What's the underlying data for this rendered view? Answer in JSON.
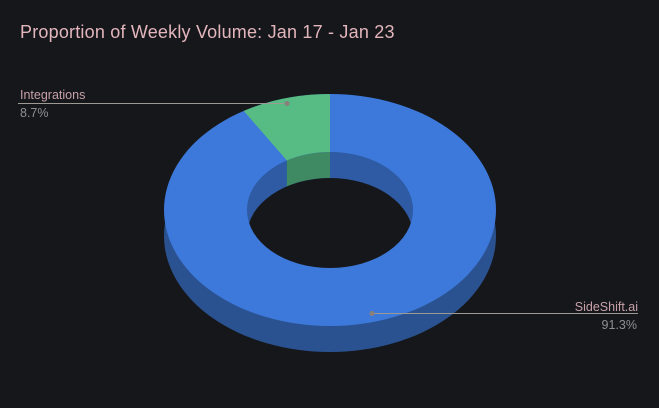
{
  "title": "Proportion of Weekly Volume: Jan 17 - Jan 23",
  "callouts": {
    "integrations": {
      "label": "Integrations",
      "value": "8.7%"
    },
    "sideshift": {
      "label": "SideShift.ai",
      "value": "91.3%"
    }
  },
  "colors": {
    "background": "#16171b",
    "title": "#e2b6bc",
    "label": "#c6a1a8",
    "value": "#8d9095",
    "callout_line": "#9d9993",
    "callout_dot": "#8a7f7b",
    "slice_blue": "#3d79da",
    "slice_blue_side": "#2b5290",
    "slice_blue_inner_wall": "#2e5ba3",
    "slice_green": "#57bb84",
    "slice_green_inner_wall": "#3f8a63"
  },
  "chart_data": {
    "type": "pie",
    "donut": true,
    "three_d": true,
    "title": "Proportion of Weekly Volume: Jan 17 - Jan 23",
    "categories": [
      "SideShift.ai",
      "Integrations"
    ],
    "values": [
      91.3,
      8.7
    ],
    "unit": "%",
    "colors": [
      "#3d79da",
      "#57bb84"
    ],
    "legend_position": "labeled-callouts",
    "background": "#16171b"
  }
}
